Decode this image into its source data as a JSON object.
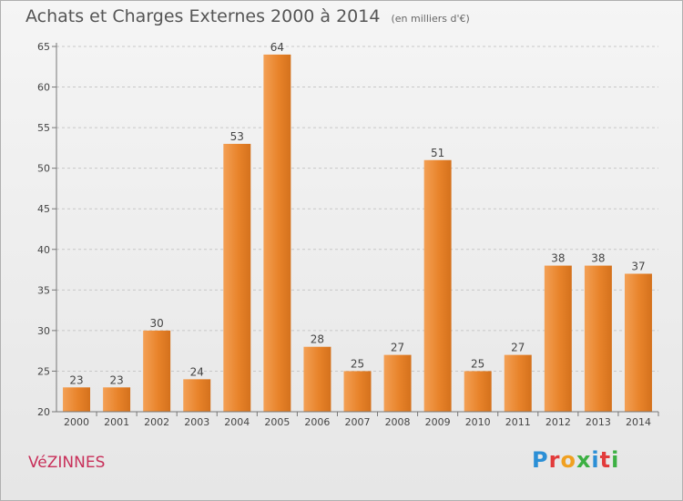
{
  "chart_title": "Achats et Charges Externes 2000 à 2014",
  "chart_subtitle": "(en milliers d'€)",
  "place_name": "VéZINNES",
  "brand": {
    "letters": [
      "P",
      "r",
      "o",
      "x",
      "i",
      "t",
      "i"
    ],
    "colors": [
      "#2b8fd6",
      "#e23b3b",
      "#f0a020",
      "#3cb043",
      "#2b8fd6",
      "#e23b3b",
      "#3cb043"
    ]
  },
  "colors": {
    "bar": "#e8832a",
    "bar_light": "#f6a85a",
    "grid": "#c8c8c8",
    "place": "#c8305a"
  },
  "chart_data": {
    "type": "bar",
    "title": "Achats et Charges Externes 2000 à 2014",
    "subtitle": "(en milliers d'€)",
    "categories": [
      "2000",
      "2001",
      "2002",
      "2003",
      "2004",
      "2005",
      "2006",
      "2007",
      "2008",
      "2009",
      "2010",
      "2011",
      "2012",
      "2013",
      "2014"
    ],
    "values": [
      23,
      23,
      30,
      24,
      53,
      64,
      28,
      25,
      27,
      51,
      25,
      27,
      38,
      38,
      37
    ],
    "ylim": [
      20,
      65
    ],
    "yticks": [
      20,
      25,
      30,
      35,
      40,
      45,
      50,
      55,
      60,
      65
    ],
    "grid": true,
    "data_labels": true
  }
}
